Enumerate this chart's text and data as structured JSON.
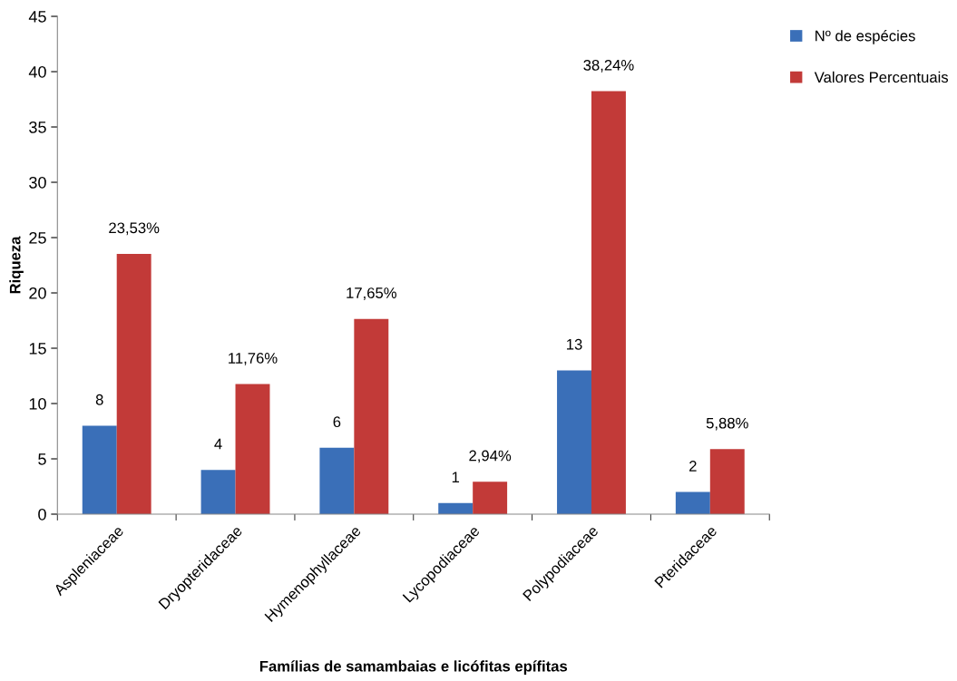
{
  "chart_data": {
    "type": "bar",
    "xlabel": "Famílias de samambaias e licófitas epífitas",
    "ylabel": "Riqueza",
    "categories": [
      "Aspleniaceae",
      "Dryopteridaceae",
      "Hymenophyllaceae",
      "Lycopodiaceae",
      "Polypodiaceae",
      "Pteridaceae"
    ],
    "series": [
      {
        "name": "Nº de espécies",
        "color": "#3a6fb8",
        "values": [
          8,
          4,
          6,
          1,
          13,
          2
        ],
        "value_labels": [
          "8",
          "4",
          "6",
          "1",
          "13",
          "2"
        ]
      },
      {
        "name": "Valores Percentuais",
        "color": "#c23a38",
        "values": [
          23.53,
          11.76,
          17.65,
          2.94,
          38.24,
          5.88
        ],
        "value_labels": [
          "23,53%",
          "11,76%",
          "17,65%",
          "2,94%",
          "38,24%",
          "5,88%"
        ]
      }
    ],
    "ylim": [
      0,
      45
    ],
    "yticks": [
      0,
      5,
      10,
      15,
      20,
      25,
      30,
      35,
      40,
      45
    ],
    "grid": false,
    "legend": "top right"
  }
}
